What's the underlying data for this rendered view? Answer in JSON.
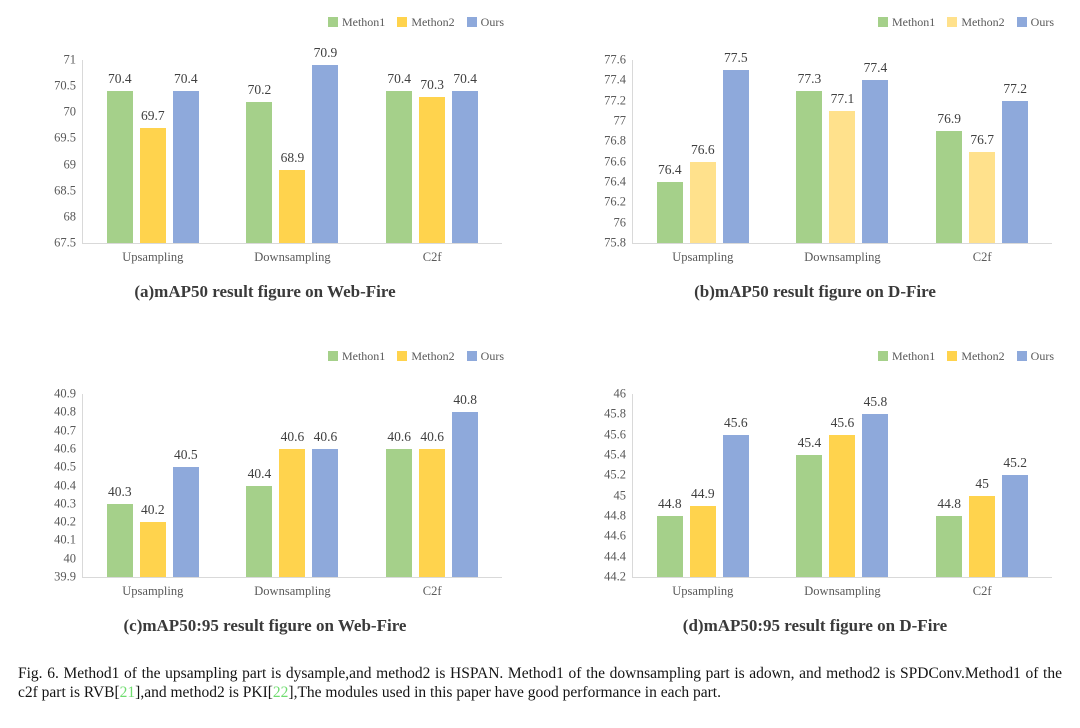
{
  "chart_data": [
    {
      "id": "a",
      "type": "bar",
      "title": "(a)mAP50 result figure on Web-Fire",
      "categories": [
        "Upsampling",
        "Downsampling",
        "C2f"
      ],
      "series": [
        {
          "name": "Methon1",
          "color": "#A5D08A",
          "values": [
            70.4,
            70.2,
            70.4
          ]
        },
        {
          "name": "Methon2",
          "color": "#FFD34D",
          "values": [
            69.7,
            68.9,
            70.3
          ]
        },
        {
          "name": "Ours",
          "color": "#8EA9DB",
          "values": [
            70.4,
            70.9,
            70.4
          ]
        }
      ],
      "ylim": [
        67.5,
        71
      ],
      "yticks": [
        "67.5",
        "68",
        "68.5",
        "69",
        "69.5",
        "70",
        "70.5",
        "71"
      ],
      "legend_position": "top-right",
      "grid": "off"
    },
    {
      "id": "b",
      "type": "bar",
      "title": "(b)mAP50 result figure on D-Fire",
      "categories": [
        "Upsampling",
        "Downsampling",
        "C2f"
      ],
      "series": [
        {
          "name": "Methon1",
          "color": "#A5D08A",
          "values": [
            76.4,
            77.3,
            76.9
          ]
        },
        {
          "name": "Methon2",
          "color": "#FFE18C",
          "values": [
            76.6,
            77.1,
            76.7
          ]
        },
        {
          "name": "Ours",
          "color": "#8EA9DB",
          "values": [
            77.5,
            77.4,
            77.2
          ]
        }
      ],
      "ylim": [
        75.8,
        77.6
      ],
      "yticks": [
        "75.8",
        "76",
        "76.2",
        "76.4",
        "76.6",
        "76.8",
        "77",
        "77.2",
        "77.4",
        "77.6"
      ],
      "legend_position": "top-right",
      "grid": "off"
    },
    {
      "id": "c",
      "type": "bar",
      "title": "(c)mAP50:95 result figure on Web-Fire",
      "categories": [
        "Upsampling",
        "Downsampling",
        "C2f"
      ],
      "series": [
        {
          "name": "Methon1",
          "color": "#A5D08A",
          "values": [
            40.3,
            40.4,
            40.6
          ]
        },
        {
          "name": "Methon2",
          "color": "#FFD34D",
          "values": [
            40.2,
            40.6,
            40.6
          ]
        },
        {
          "name": "Ours",
          "color": "#8EA9DB",
          "values": [
            40.5,
            40.6,
            40.8
          ]
        }
      ],
      "ylim": [
        39.9,
        40.9
      ],
      "yticks": [
        "39.9",
        "40",
        "40.1",
        "40.2",
        "40.3",
        "40.4",
        "40.5",
        "40.6",
        "40.7",
        "40.8",
        "40.9"
      ],
      "legend_position": "top-right",
      "grid": "off"
    },
    {
      "id": "d",
      "type": "bar",
      "title": "(d)mAP50:95 result figure on D-Fire",
      "categories": [
        "Upsampling",
        "Downsampling",
        "C2f"
      ],
      "series": [
        {
          "name": "Methon1",
          "color": "#A5D08A",
          "values": [
            44.8,
            45.4,
            44.8
          ]
        },
        {
          "name": "Methon2",
          "color": "#FFD34D",
          "values": [
            44.9,
            45.6,
            45
          ]
        },
        {
          "name": "Ours",
          "color": "#8EA9DB",
          "values": [
            45.6,
            45.8,
            45.2
          ]
        }
      ],
      "ylim": [
        44.2,
        46
      ],
      "yticks": [
        "44.2",
        "44.4",
        "44.6",
        "44.8",
        "45",
        "45.2",
        "45.4",
        "45.6",
        "45.8",
        "46"
      ],
      "legend_position": "top-right",
      "grid": "off"
    }
  ],
  "caption": {
    "segments": {
      "part1": "Fig. 6.  Method1 of the upsampling part is dysample,and method2 is HSPAN. Method1 of the downsampling part is adown, and method2 is SPDConv.Method1 of the c2f part is RVB[",
      "cite1": "21",
      "part2": "],and method2 is PKI[",
      "cite2": "22",
      "part3": "],The modules used in this paper have good performance in each part."
    },
    "citation_color": "#6FDC6F"
  },
  "style_colors": {
    "axis_line": "#D9D9D9",
    "tick_text": "#595959",
    "value_label_text": "#3F3F3F",
    "title_text": "#3A3A3A"
  }
}
